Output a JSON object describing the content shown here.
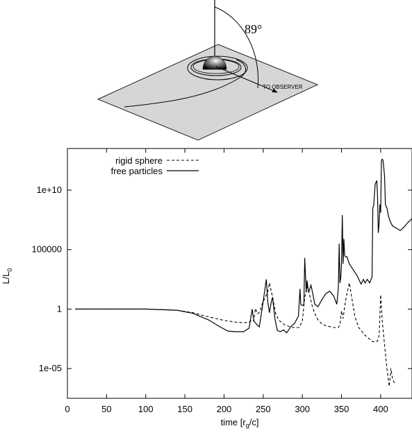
{
  "diagram": {
    "angle_label": "89°",
    "observer_label": "TO OBSERVER"
  },
  "chart_data": {
    "type": "line",
    "title": "",
    "xlabel": "time [r_g/c]",
    "xlabel_parts": {
      "base": "time [r",
      "sub": "g",
      "end": "/c]"
    },
    "ylabel": "L/L_0",
    "ylabel_parts": {
      "base": "L/L",
      "sub": "0"
    },
    "xlim": [
      0,
      440
    ],
    "ylim_log10": [
      -7.5,
      13.5
    ],
    "yscale": "log",
    "grid": false,
    "legend_position": "top-left",
    "x_ticks": [
      0,
      50,
      100,
      150,
      200,
      250,
      300,
      350,
      400
    ],
    "x_tick_labels": [
      "0",
      "50",
      "100",
      "150",
      "200",
      "250",
      "300",
      "350",
      "400"
    ],
    "y_ticks_log10": [
      -5,
      0,
      5,
      10
    ],
    "y_tick_labels": [
      "1e-05",
      "1",
      "100000",
      "1e+10"
    ],
    "series": [
      {
        "name": "rigid sphere",
        "style": "dashed",
        "x": [
          10,
          50,
          100,
          140,
          160,
          180,
          200,
          215,
          225,
          232,
          236,
          238,
          240,
          243,
          246,
          249,
          252,
          256,
          258,
          262,
          266,
          270,
          278,
          288,
          296,
          300,
          303,
          306,
          309,
          312,
          316,
          320,
          325,
          330,
          340,
          346,
          348,
          350,
          352,
          354,
          356,
          360,
          363,
          367,
          372,
          380,
          390,
          396,
          398,
          400,
          402,
          405,
          408,
          411,
          413,
          415,
          418
        ],
        "log10_y": [
          0,
          0,
          0,
          -0.1,
          -0.3,
          -0.65,
          -0.95,
          -1.1,
          -1.15,
          -1.1,
          -0.9,
          -1.0,
          0.05,
          -0.4,
          -0.2,
          0.5,
          0.9,
          1.5,
          2.2,
          1.0,
          -0.4,
          -0.95,
          -1.35,
          -1.55,
          -1.55,
          -1.0,
          1.0,
          1.9,
          1.3,
          0.4,
          -0.4,
          -0.9,
          -1.25,
          -1.4,
          -1.55,
          -1.55,
          -1.3,
          -0.15,
          -0.8,
          0.2,
          1.0,
          2.2,
          1.0,
          -0.6,
          -1.55,
          -2.2,
          -2.75,
          -2.7,
          -2.2,
          1.2,
          -1.0,
          -3.0,
          -5.0,
          -6.5,
          -5.0,
          -5.8,
          -6.3
        ]
      },
      {
        "name": "free particles",
        "style": "solid",
        "x": [
          10,
          50,
          100,
          140,
          160,
          180,
          195,
          205,
          215,
          225,
          232,
          236,
          238,
          242,
          245,
          249,
          254,
          256,
          258,
          260,
          262,
          265,
          268,
          272,
          276,
          280,
          285,
          290,
          295,
          297,
          298,
          300,
          302,
          303,
          305,
          306,
          308,
          311,
          313,
          316,
          320,
          325,
          330,
          335,
          340,
          344,
          346,
          347,
          348,
          349,
          350,
          351,
          352,
          353,
          354,
          355,
          357,
          360,
          365,
          370,
          375,
          378,
          380,
          383,
          386,
          389,
          390,
          391,
          392,
          393,
          395,
          396,
          397,
          398,
          399,
          400,
          401,
          402,
          403,
          405,
          406,
          408,
          410,
          412,
          415,
          420,
          425,
          430,
          435,
          440
        ],
        "log10_y": [
          0,
          0,
          0,
          -0.1,
          -0.35,
          -0.9,
          -1.5,
          -1.85,
          -1.9,
          -1.9,
          -1.6,
          0.0,
          -1.0,
          -1.3,
          -1.5,
          0.2,
          2.5,
          0.5,
          -0.3,
          0.5,
          1.0,
          -0.8,
          -1.8,
          -1.9,
          -1.75,
          -2.0,
          -1.5,
          -1.2,
          -0.6,
          1.7,
          0.4,
          0.3,
          0.4,
          4.3,
          1.4,
          2.4,
          1.4,
          2.0,
          1.4,
          0.4,
          0.2,
          0.8,
          1.3,
          1.5,
          1.1,
          0.4,
          1.8,
          5.5,
          2.2,
          2.6,
          3.7,
          7.9,
          3.8,
          5.9,
          4.5,
          4.4,
          4.4,
          3.8,
          3.3,
          2.8,
          2.1,
          2.5,
          2.2,
          2.5,
          2.2,
          2.7,
          8.5,
          8.7,
          9.6,
          10.5,
          10.8,
          9.5,
          6.4,
          7.2,
          8.8,
          8.1,
          12.5,
          12.6,
          12.5,
          11.2,
          8.8,
          8.5,
          7.8,
          7.4,
          7.0,
          6.8,
          6.6,
          6.9,
          7.3,
          7.6
        ]
      }
    ]
  }
}
